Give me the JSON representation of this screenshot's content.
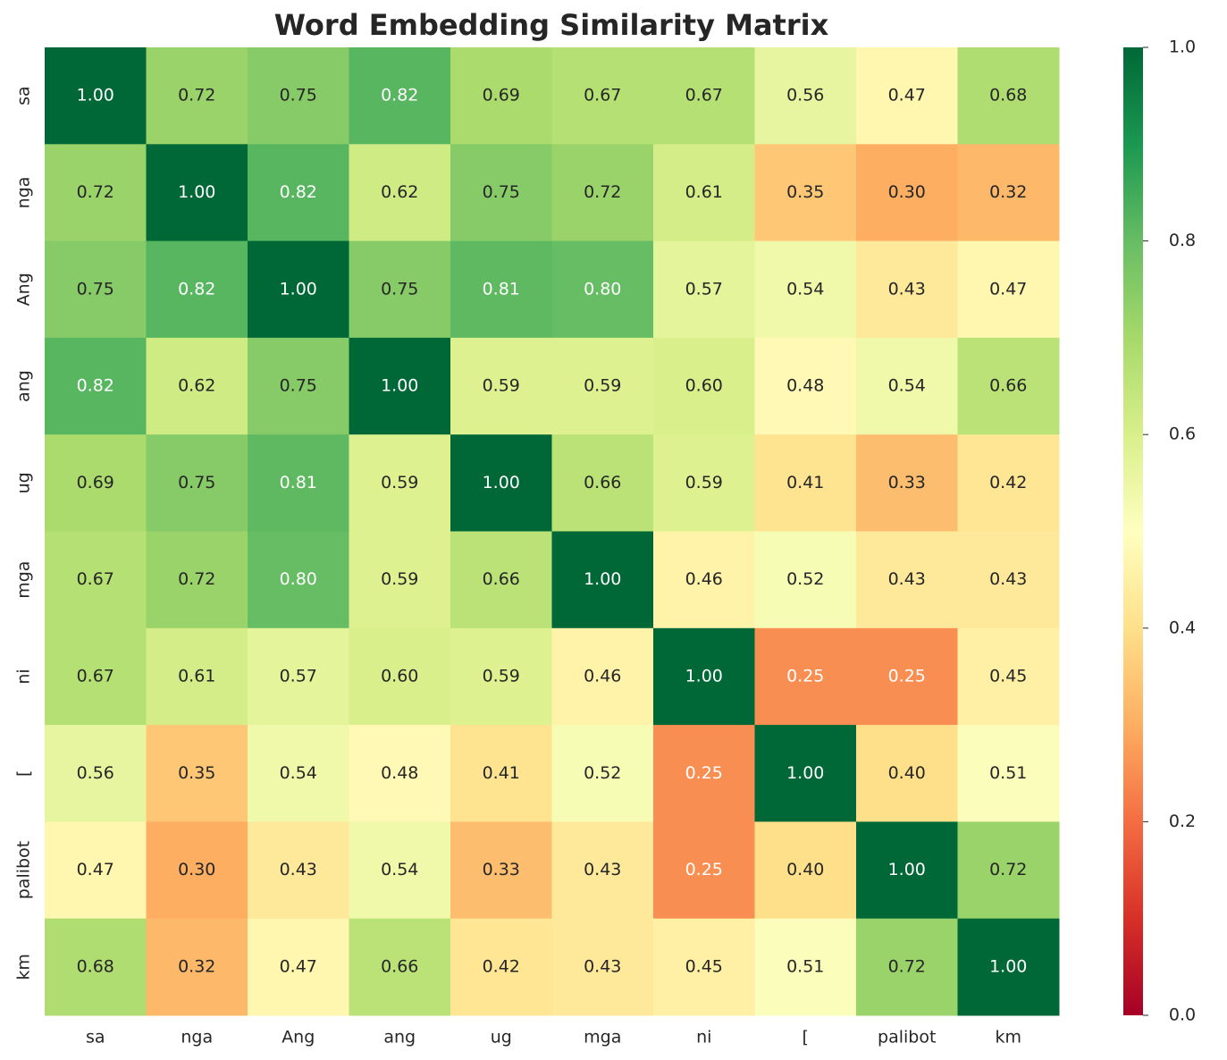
{
  "chart_data": {
    "type": "heatmap",
    "title": "Word Embedding Similarity Matrix",
    "x_categories": [
      "sa",
      "nga",
      "Ang",
      "ang",
      "ug",
      "mga",
      "ni",
      "[",
      "palibot",
      "km"
    ],
    "y_categories": [
      "sa",
      "nga",
      "Ang",
      "ang",
      "ug",
      "mga",
      "ni",
      "[",
      "palibot",
      "km"
    ],
    "values": [
      [
        1.0,
        0.72,
        0.75,
        0.82,
        0.69,
        0.67,
        0.67,
        0.56,
        0.47,
        0.68
      ],
      [
        0.72,
        1.0,
        0.82,
        0.62,
        0.75,
        0.72,
        0.61,
        0.35,
        0.3,
        0.32
      ],
      [
        0.75,
        0.82,
        1.0,
        0.75,
        0.81,
        0.8,
        0.57,
        0.54,
        0.43,
        0.47
      ],
      [
        0.82,
        0.62,
        0.75,
        1.0,
        0.59,
        0.59,
        0.6,
        0.48,
        0.54,
        0.66
      ],
      [
        0.69,
        0.75,
        0.81,
        0.59,
        1.0,
        0.66,
        0.59,
        0.41,
        0.33,
        0.42
      ],
      [
        0.67,
        0.72,
        0.8,
        0.59,
        0.66,
        1.0,
        0.46,
        0.52,
        0.43,
        0.43
      ],
      [
        0.67,
        0.61,
        0.57,
        0.6,
        0.59,
        0.46,
        1.0,
        0.25,
        0.25,
        0.45
      ],
      [
        0.56,
        0.35,
        0.54,
        0.48,
        0.41,
        0.52,
        0.25,
        1.0,
        0.4,
        0.51
      ],
      [
        0.47,
        0.3,
        0.43,
        0.54,
        0.33,
        0.43,
        0.25,
        0.4,
        1.0,
        0.72
      ],
      [
        0.68,
        0.32,
        0.47,
        0.66,
        0.42,
        0.43,
        0.45,
        0.51,
        0.72,
        1.0
      ]
    ],
    "value_labels": [
      [
        "1.00",
        "0.72",
        "0.75",
        "0.82",
        "0.69",
        "0.67",
        "0.67",
        "0.56",
        "0.47",
        "0.68"
      ],
      [
        "0.72",
        "1.00",
        "0.82",
        "0.62",
        "0.75",
        "0.72",
        "0.61",
        "0.35",
        "0.30",
        "0.32"
      ],
      [
        "0.75",
        "0.82",
        "1.00",
        "0.75",
        "0.81",
        "0.80",
        "0.57",
        "0.54",
        "0.43",
        "0.47"
      ],
      [
        "0.82",
        "0.62",
        "0.75",
        "1.00",
        "0.59",
        "0.59",
        "0.60",
        "0.48",
        "0.54",
        "0.66"
      ],
      [
        "0.69",
        "0.75",
        "0.81",
        "0.59",
        "1.00",
        "0.66",
        "0.59",
        "0.41",
        "0.33",
        "0.42"
      ],
      [
        "0.67",
        "0.72",
        "0.80",
        "0.59",
        "0.66",
        "1.00",
        "0.46",
        "0.52",
        "0.43",
        "0.43"
      ],
      [
        "0.67",
        "0.61",
        "0.57",
        "0.60",
        "0.59",
        "0.46",
        "1.00",
        "0.25",
        "0.25",
        "0.45"
      ],
      [
        "0.56",
        "0.35",
        "0.54",
        "0.48",
        "0.41",
        "0.52",
        "0.25",
        "1.00",
        "0.40",
        "0.51"
      ],
      [
        "0.47",
        "0.30",
        "0.43",
        "0.54",
        "0.33",
        "0.43",
        "0.25",
        "0.40",
        "1.00",
        "0.72"
      ],
      [
        "0.68",
        "0.32",
        "0.47",
        "0.66",
        "0.42",
        "0.43",
        "0.45",
        "0.51",
        "0.72",
        "1.00"
      ]
    ],
    "colormap": [
      "#a50026",
      "#d73027",
      "#f46d43",
      "#fdae61",
      "#fee08b",
      "#ffffbf",
      "#d9ef8b",
      "#a6d96a",
      "#66bd63",
      "#1a9850",
      "#006837"
    ],
    "clim": [
      0,
      1
    ],
    "cticks": [
      {
        "value": 0,
        "label": "0.0"
      },
      0.2,
      0.4,
      0.6,
      0.8,
      {
        "value": 1,
        "label": "1.0"
      }
    ]
  }
}
